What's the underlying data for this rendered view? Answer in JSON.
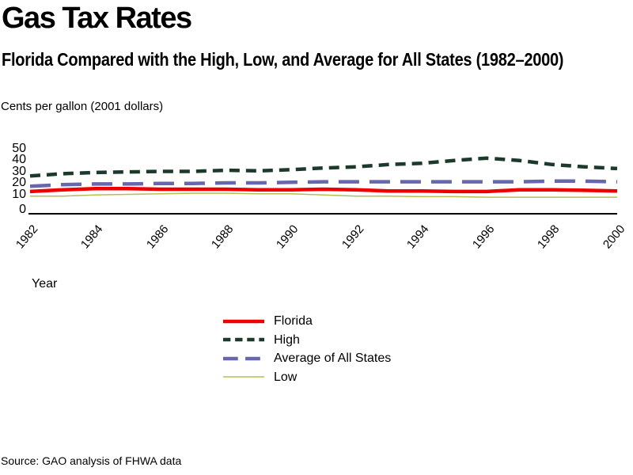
{
  "page": {
    "title": "Gas Tax Rates",
    "subtitle": "Florida Compared with the High, Low, and Average for All States (1982–2000)",
    "units_label": "Cents per gallon (2001 dollars)",
    "source": "Source: GAO analysis of FHWA data"
  },
  "chart_data": {
    "type": "line",
    "title": "Gas Tax Rates",
    "subtitle": "Florida Compared with the High, Low, and Average for All States (1982–2000)",
    "xlabel": "Year",
    "ylabel": "Cents per gallon (2001 dollars)",
    "x": [
      1982,
      1983,
      1984,
      1985,
      1986,
      1987,
      1988,
      1989,
      1990,
      1991,
      1992,
      1993,
      1994,
      1995,
      1996,
      1997,
      1998,
      1999,
      2000
    ],
    "x_tick_labels": [
      "1982",
      "1984",
      "1986",
      "1988",
      "1990",
      "1992",
      "1994",
      "1996",
      "1998",
      "2000"
    ],
    "y_ticks": [
      0,
      10,
      20,
      30,
      40,
      50
    ],
    "ylim": [
      0,
      50
    ],
    "grid": false,
    "legend_position": "bottom-center",
    "series": [
      {
        "name": "Florida",
        "color": "#ee0000",
        "style": "solid",
        "dash": "",
        "width": 4.5,
        "values": [
          12.5,
          14,
          15,
          15,
          14.5,
          14.5,
          14.5,
          14,
          14,
          14.5,
          14,
          13,
          13,
          12.5,
          12.5,
          14,
          14,
          13.5,
          13
        ]
      },
      {
        "name": "High",
        "color": "#1c3a2a",
        "style": "dashed",
        "dash": "13,8",
        "width": 4.5,
        "values": [
          26,
          28,
          29,
          29.5,
          30,
          30,
          31,
          30.5,
          31.5,
          33,
          34,
          36,
          37,
          39.5,
          41.5,
          39.5,
          36,
          34,
          32.5
        ]
      },
      {
        "name": "Average of All States",
        "color": "#6767ad",
        "style": "long-dash",
        "dash": "26,13",
        "width": 4.5,
        "values": [
          17,
          18.5,
          19,
          19,
          19.5,
          19.5,
          20,
          20,
          20.5,
          21,
          21,
          21,
          21,
          21,
          21,
          21,
          21.5,
          21.5,
          21
        ]
      },
      {
        "name": "Low",
        "color": "#b3c04f",
        "style": "solid",
        "dash": "",
        "width": 1.5,
        "values": [
          8.5,
          8.5,
          9.5,
          10,
          10.5,
          11,
          11,
          10.5,
          10.5,
          9.5,
          8.5,
          8.5,
          8,
          8,
          7.5,
          7.5,
          7.5,
          7.5,
          7.5
        ]
      }
    ],
    "source": "Source: GAO analysis of FHWA data"
  }
}
